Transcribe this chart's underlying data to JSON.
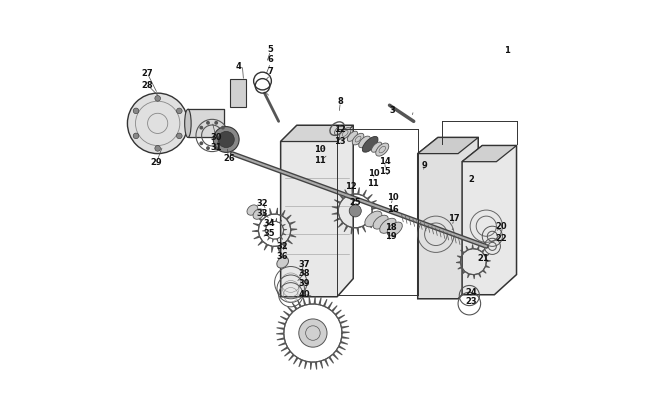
{
  "title": "",
  "bg_color": "#ffffff",
  "line_color": "#333333",
  "label_color": "#111111",
  "fig_width": 6.5,
  "fig_height": 4.06,
  "dpi": 100
}
